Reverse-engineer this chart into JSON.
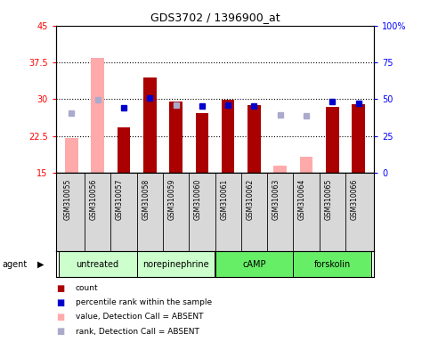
{
  "title": "GDS3702 / 1396900_at",
  "samples": [
    "GSM310055",
    "GSM310056",
    "GSM310057",
    "GSM310058",
    "GSM310059",
    "GSM310060",
    "GSM310061",
    "GSM310062",
    "GSM310063",
    "GSM310064",
    "GSM310065",
    "GSM310066"
  ],
  "count_values": [
    null,
    null,
    24.3,
    34.5,
    29.5,
    27.2,
    29.8,
    28.8,
    null,
    null,
    28.4,
    29.0
  ],
  "count_absent": [
    22.1,
    38.5,
    null,
    null,
    null,
    null,
    null,
    null,
    16.5,
    18.2,
    null,
    null
  ],
  "rank_values": [
    null,
    null,
    28.3,
    30.2,
    null,
    28.6,
    28.8,
    28.6,
    null,
    null,
    29.5,
    29.1
  ],
  "rank_absent": [
    27.2,
    29.9,
    null,
    null,
    28.8,
    null,
    null,
    null,
    26.8,
    26.7,
    null,
    null
  ],
  "ylim_left": [
    15,
    45
  ],
  "ylim_right": [
    0,
    100
  ],
  "yticks_left": [
    15,
    22.5,
    30,
    37.5,
    45
  ],
  "yticks_right": [
    0,
    25,
    50,
    75,
    100
  ],
  "ytick_labels_left": [
    "15",
    "22.5",
    "30",
    "37.5",
    "45"
  ],
  "ytick_labels_right": [
    "0",
    "25",
    "50",
    "75",
    "100%"
  ],
  "grid_lines": [
    22.5,
    30,
    37.5
  ],
  "bar_color_present": "#aa0000",
  "bar_color_absent": "#ffaaaa",
  "rank_color_present": "#0000cc",
  "rank_color_absent": "#aaaacc",
  "bar_width": 0.5,
  "groups_info": [
    {
      "label": "untreated",
      "start": 0,
      "end": 2,
      "color": "#ccffcc"
    },
    {
      "label": "norepinephrine",
      "start": 3,
      "end": 5,
      "color": "#ccffcc"
    },
    {
      "label": "cAMP",
      "start": 6,
      "end": 8,
      "color": "#66ee66"
    },
    {
      "label": "forskolin",
      "start": 9,
      "end": 11,
      "color": "#66ee66"
    }
  ],
  "legend_items": [
    {
      "color": "#aa0000",
      "label": "count"
    },
    {
      "color": "#0000cc",
      "label": "percentile rank within the sample"
    },
    {
      "color": "#ffaaaa",
      "label": "value, Detection Call = ABSENT"
    },
    {
      "color": "#aaaacc",
      "label": "rank, Detection Call = ABSENT"
    }
  ]
}
